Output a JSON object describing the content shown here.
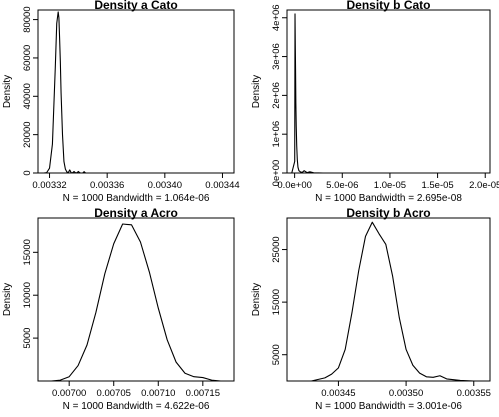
{
  "chart_data": [
    {
      "type": "line",
      "title": "Density a Cato",
      "xlabel": "N = 1000   Bandwidth = 1.064e-06",
      "ylabel": "Density",
      "xlim": [
        0.003312,
        0.003448
      ],
      "ylim": [
        0,
        85000
      ],
      "xticks": [
        0.00332,
        0.00336,
        0.0034,
        0.00344
      ],
      "xtick_labels": [
        "0.00332",
        "0.00336",
        "0.00340",
        "0.00344"
      ],
      "yticks": [
        0,
        20000,
        40000,
        60000,
        80000
      ],
      "ytick_labels": [
        "0",
        "20000",
        "40000",
        "60000",
        "80000"
      ],
      "grid": false,
      "series": [
        {
          "x": [
            0.003316,
            0.003318,
            0.00332,
            0.003322,
            0.003324,
            0.003325,
            0.003326,
            0.0033265,
            0.003327,
            0.0033275,
            0.003328,
            0.003329,
            0.00333,
            0.003331,
            0.003332,
            0.003333,
            0.003334,
            0.003335,
            0.003336,
            0.003337,
            0.003338,
            0.003339,
            0.00334,
            0.003341,
            0.003342,
            0.003343,
            0.003344,
            0.003345,
            0.003346
          ],
          "y": [
            0,
            200,
            2500,
            15000,
            55000,
            78000,
            84000,
            81000,
            70000,
            58000,
            42000,
            20000,
            6000,
            2000,
            600,
            200,
            1600,
            200,
            100,
            800,
            100,
            100,
            800,
            100,
            0,
            0,
            700,
            0,
            0
          ]
        }
      ]
    },
    {
      "type": "line",
      "title": "Density b Cato",
      "xlabel": "N = 1000   Bandwidth = 2.695e-08",
      "ylabel": "Density",
      "xlim": [
        -8e-07,
        2.05e-05
      ],
      "ylim": [
        0,
        4200000
      ],
      "xticks": [
        0,
        5e-06,
        1e-05,
        1.5e-05,
        2e-05
      ],
      "xtick_labels": [
        "0.0e+00",
        "5.0e-06",
        "1.0e-05",
        "1.5e-05",
        "2.0e-05"
      ],
      "yticks": [
        0,
        1000000,
        2000000,
        3000000,
        4000000
      ],
      "ytick_labels": [
        "0e+00",
        "1e+06",
        "2e+06",
        "3e+06",
        "4e+06"
      ],
      "grid": false,
      "series": [
        {
          "x": [
            -3e-07,
            1e-08,
            4e-08,
            7e-08,
            1e-07,
            1.3e-07,
            1.7e-07,
            2.2e-07,
            2.8e-07,
            3.5e-07,
            4.5e-07,
            6e-07,
            8e-07,
            1e-06,
            1.3e-06,
            1.6e-06,
            2e-06,
            3e-06,
            5e-06,
            7e-06,
            9e-06,
            1.1e-05,
            1.3e-05,
            1.5e-05,
            1.7e-05,
            1.9e-05,
            2.01e-05
          ],
          "y": [
            0,
            300000,
            4100000,
            3300000,
            2600000,
            1800000,
            1200000,
            700000,
            350000,
            150000,
            60000,
            30000,
            15000,
            60000,
            10000,
            30000,
            5000,
            0,
            0,
            0,
            0,
            0,
            0,
            0,
            0,
            0,
            0
          ]
        }
      ]
    },
    {
      "type": "line",
      "title": "Density a Acro",
      "xlabel": "N = 1000   Bandwidth = 4.622e-06",
      "ylabel": "Density",
      "xlim": [
        0.006965,
        0.007185
      ],
      "ylim": [
        0,
        19000
      ],
      "xticks": [
        0.007,
        0.00705,
        0.0071,
        0.00715
      ],
      "xtick_labels": [
        "0.00700",
        "0.00705",
        "0.00710",
        "0.00715"
      ],
      "yticks": [
        5000,
        10000,
        15000
      ],
      "ytick_labels": [
        "5000",
        "10000",
        "15000"
      ],
      "grid": false,
      "series": [
        {
          "x": [
            0.00698,
            0.00699,
            0.007,
            0.00701,
            0.00702,
            0.00703,
            0.00704,
            0.00705,
            0.00706,
            0.00707,
            0.00708,
            0.00709,
            0.0071,
            0.00711,
            0.00712,
            0.00713,
            0.00714,
            0.00715,
            0.00716,
            0.00717
          ],
          "y": [
            0,
            100,
            500,
            1800,
            4200,
            8000,
            12500,
            16000,
            18300,
            18200,
            16200,
            12700,
            8500,
            4800,
            2200,
            900,
            500,
            400,
            100,
            0
          ]
        }
      ]
    },
    {
      "type": "line",
      "title": "Density b Acro",
      "xlabel": "N = 1000   Bandwidth = 3.001e-06",
      "ylabel": "Density",
      "xlim": [
        0.003412,
        0.003562
      ],
      "ylim": [
        0,
        31000
      ],
      "xticks": [
        0.00345,
        0.0035,
        0.00355
      ],
      "xtick_labels": [
        "0.00345",
        "0.00350",
        "0.00355"
      ],
      "yticks": [
        5000,
        15000,
        25000
      ],
      "ytick_labels": [
        "5000",
        "15000",
        "25000"
      ],
      "grid": false,
      "series": [
        {
          "x": [
            0.00343,
            0.00344,
            0.003445,
            0.00345,
            0.003455,
            0.00346,
            0.003465,
            0.00347,
            0.003475,
            0.00348,
            0.003485,
            0.00349,
            0.003495,
            0.0035,
            0.003505,
            0.00351,
            0.003515,
            0.00352,
            0.003525,
            0.00353,
            0.00354,
            0.00355
          ],
          "y": [
            0,
            600,
            1300,
            2500,
            6000,
            13000,
            21000,
            27500,
            30200,
            28000,
            26000,
            20000,
            12000,
            6000,
            3000,
            1500,
            800,
            700,
            1000,
            400,
            100,
            0
          ]
        }
      ]
    }
  ]
}
